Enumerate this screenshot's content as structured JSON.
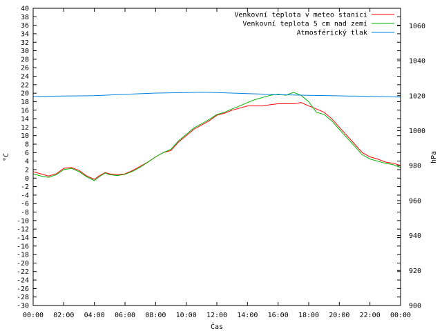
{
  "chart_data": {
    "type": "line",
    "xlabel": "Čas",
    "ylabel": "°C",
    "y2label": "hPa",
    "x_ticks": [
      "00:00",
      "02:00",
      "04:00",
      "06:00",
      "08:00",
      "10:00",
      "12:00",
      "14:00",
      "16:00",
      "18:00",
      "20:00",
      "22:00",
      "00:00"
    ],
    "x_range_hours": [
      0,
      24
    ],
    "ylim": [
      -30,
      40
    ],
    "y_step": 2,
    "y2lim": [
      900,
      1070
    ],
    "y2_step": 20,
    "legend_position": "top-right",
    "grid": false,
    "series": [
      {
        "name": "Venkovní teplota v meteo stanici",
        "axis": "left",
        "color": "#ff0000",
        "x": [
          0,
          0.5,
          1,
          1.5,
          2,
          2.5,
          3,
          3.5,
          4,
          4.3,
          4.7,
          5,
          5.5,
          6,
          6.5,
          7,
          7.5,
          8,
          8.5,
          9,
          9.5,
          10,
          10.5,
          11,
          11.5,
          12,
          12.5,
          13,
          13.5,
          14,
          14.5,
          15,
          15.5,
          16,
          16.5,
          17,
          17.5,
          18,
          18.5,
          19,
          19.5,
          20,
          20.5,
          21,
          21.5,
          22,
          22.5,
          23,
          23.5,
          24
        ],
        "values": [
          1.5,
          1.0,
          0.5,
          1.0,
          2.3,
          2.5,
          1.8,
          0.5,
          -0.3,
          0.5,
          1.3,
          1.0,
          0.8,
          1.0,
          1.8,
          2.8,
          3.8,
          5.0,
          6.0,
          6.5,
          8.5,
          10.0,
          11.5,
          12.5,
          13.5,
          14.8,
          15.3,
          16.0,
          16.5,
          17.0,
          17.0,
          17.0,
          17.3,
          17.5,
          17.5,
          17.5,
          17.8,
          17.0,
          16.3,
          15.5,
          14.0,
          12.0,
          10.0,
          8.0,
          6.0,
          5.0,
          4.5,
          3.8,
          3.5,
          3.0
        ]
      },
      {
        "name": "Venkovní teplota 5 cm nad zemí",
        "axis": "left",
        "color": "#00b000",
        "x": [
          0,
          0.5,
          1,
          1.5,
          2,
          2.5,
          3,
          3.5,
          4,
          4.3,
          4.7,
          5,
          5.5,
          6,
          6.5,
          7,
          7.5,
          8,
          8.5,
          9,
          9.5,
          10,
          10.5,
          11,
          11.5,
          12,
          12.5,
          13,
          13.5,
          14,
          14.5,
          15,
          15.5,
          16,
          16.5,
          17,
          17.5,
          18,
          18.5,
          19,
          19.5,
          20,
          20.5,
          21,
          21.5,
          22,
          22.5,
          23,
          23.5,
          24
        ],
        "values": [
          1.0,
          0.5,
          0.2,
          0.8,
          2.0,
          2.3,
          1.5,
          0.3,
          -0.6,
          0.3,
          1.2,
          0.8,
          0.6,
          0.9,
          1.6,
          2.6,
          3.8,
          5.0,
          6.0,
          6.8,
          8.8,
          10.3,
          11.8,
          12.8,
          13.8,
          15.0,
          15.5,
          16.3,
          17.0,
          17.8,
          18.5,
          19.0,
          19.5,
          19.8,
          19.5,
          20.2,
          19.5,
          18.0,
          15.5,
          15.0,
          13.5,
          11.5,
          9.5,
          7.5,
          5.5,
          4.5,
          4.0,
          3.5,
          3.2,
          2.5
        ]
      },
      {
        "name": "Atmosférický tlak",
        "axis": "right",
        "color": "#0080e0",
        "x": [
          0,
          2,
          4,
          6,
          8,
          10,
          11,
          12,
          14,
          16,
          18,
          20,
          22,
          24
        ],
        "values": [
          1019.5,
          1019.8,
          1020.0,
          1020.8,
          1021.5,
          1021.8,
          1022.0,
          1021.8,
          1021.2,
          1020.6,
          1020.2,
          1019.9,
          1019.6,
          1019.2
        ]
      }
    ]
  }
}
